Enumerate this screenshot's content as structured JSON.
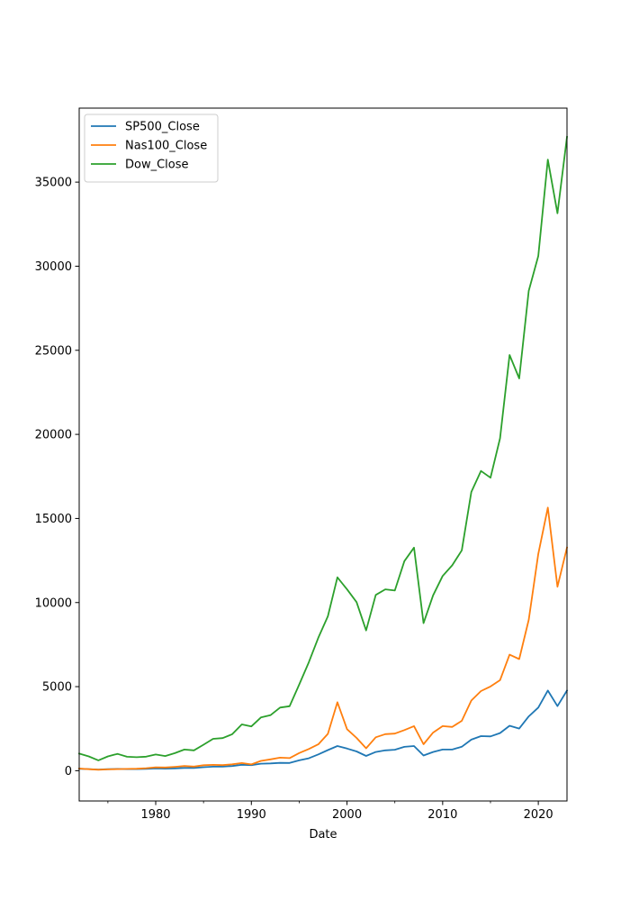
{
  "chart_data": {
    "type": "line",
    "xlabel": "Date",
    "ylabel": "",
    "xlim": [
      1972,
      2023
    ],
    "ylim": [
      -1800,
      39400
    ],
    "x_ticks": [
      1980,
      1990,
      2000,
      2010,
      2020
    ],
    "x_minor_ticks": [
      1975,
      1985,
      1995,
      2005,
      2015
    ],
    "y_ticks": [
      0,
      5000,
      10000,
      15000,
      20000,
      25000,
      30000,
      35000
    ],
    "legend_position": "top-left",
    "grid": false,
    "x": [
      1972,
      1973,
      1974,
      1975,
      1976,
      1977,
      1978,
      1979,
      1980,
      1981,
      1982,
      1983,
      1984,
      1985,
      1986,
      1987,
      1988,
      1989,
      1990,
      1991,
      1992,
      1993,
      1994,
      1995,
      1996,
      1997,
      1998,
      1999,
      2000,
      2001,
      2002,
      2003,
      2004,
      2005,
      2006,
      2007,
      2008,
      2009,
      2010,
      2011,
      2012,
      2013,
      2014,
      2015,
      2016,
      2017,
      2018,
      2019,
      2020,
      2021,
      2022,
      2023
    ],
    "series": [
      {
        "name": "SP500_Close",
        "color": "#1f77b4",
        "values": [
          118,
          97,
          68,
          90,
          107,
          95,
          96,
          108,
          136,
          122,
          141,
          165,
          167,
          211,
          242,
          247,
          278,
          353,
          330,
          417,
          436,
          466,
          459,
          616,
          741,
          970,
          1229,
          1469,
          1320,
          1148,
          880,
          1112,
          1212,
          1248,
          1418,
          1468,
          903,
          1115,
          1258,
          1258,
          1426,
          1848,
          2059,
          2044,
          2239,
          2674,
          2507,
          3231,
          3756,
          4766,
          3840,
          4770
        ]
      },
      {
        "name": "Nas100_Close",
        "color": "#ff7f0e",
        "values": [
          130,
          92,
          60,
          78,
          97,
          105,
          118,
          151,
          202,
          195,
          232,
          278,
          247,
          325,
          349,
          330,
          381,
          454,
          373,
          586,
          677,
          777,
          752,
          1052,
          1291,
          1570,
          2193,
          4070,
          2470,
          1950,
          1336,
          1988,
          2175,
          2205,
          2416,
          2652,
          1577,
          2269,
          2653,
          2605,
          2966,
          4176,
          4736,
          5007,
          5383,
          6903,
          6636,
          8973,
          12888,
          15645,
          10940,
          13270
        ]
      },
      {
        "name": "Dow_Close",
        "color": "#2ca02c",
        "values": [
          1020,
          851,
          616,
          852,
          1004,
          831,
          805,
          838,
          964,
          875,
          1046,
          1258,
          1211,
          1546,
          1896,
          1939,
          2169,
          2753,
          2634,
          3169,
          3301,
          3754,
          3834,
          5117,
          6448,
          7908,
          9181,
          11497,
          10787,
          10022,
          8342,
          10454,
          10783,
          10718,
          12463,
          13265,
          8776,
          10428,
          11578,
          12218,
          13104,
          16577,
          17823,
          17425,
          19763,
          24719,
          23327,
          28538,
          30606,
          36338,
          33147,
          37690
        ]
      }
    ]
  }
}
